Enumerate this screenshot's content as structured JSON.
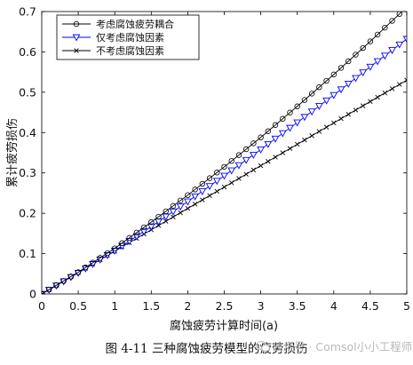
{
  "chart_data": {
    "type": "line",
    "title": "",
    "xlabel": "腐蚀疲劳计算时间(a)",
    "ylabel": "累计疲劳损伤",
    "xlim": [
      0,
      5
    ],
    "ylim": [
      0,
      0.7
    ],
    "xticks": [
      0,
      0.5,
      1,
      1.5,
      2,
      2.5,
      3,
      3.5,
      4,
      4.5,
      5
    ],
    "xtick_labels": [
      "0",
      "0.5",
      "1",
      "1.5",
      "2",
      "2.5",
      "3",
      "3.5",
      "4",
      "4.5",
      "5"
    ],
    "yticks": [
      0,
      0.1,
      0.2,
      0.3,
      0.4,
      0.5,
      0.6,
      0.7
    ],
    "ytick_labels": [
      "0",
      "0.1",
      "0.2",
      "0.3",
      "0.4",
      "0.5",
      "0.6",
      "0.7"
    ],
    "grid": false,
    "legend_position": "top-left",
    "x": [
      0,
      0.5,
      1,
      1.5,
      2,
      2.5,
      3,
      3.5,
      4,
      4.5,
      5
    ],
    "series": [
      {
        "name": "考虑腐蚀疲劳耦合",
        "color": "#000000",
        "marker": "circle",
        "values": [
          0,
          0.054,
          0.113,
          0.178,
          0.245,
          0.315,
          0.388,
          0.465,
          0.544,
          0.626,
          0.711
        ]
      },
      {
        "name": "仅考虑腐蚀因素",
        "color": "#0000ff",
        "marker": "triangle-down",
        "values": [
          0,
          0.052,
          0.107,
          0.167,
          0.229,
          0.293,
          0.358,
          0.425,
          0.493,
          0.563,
          0.632
        ]
      },
      {
        "name": "不考虑腐蚀因素",
        "color": "#000000",
        "marker": "x",
        "values": [
          0,
          0.053,
          0.106,
          0.159,
          0.212,
          0.265,
          0.318,
          0.371,
          0.424,
          0.477,
          0.53
        ]
      }
    ]
  },
  "caption": "图 4-11  三种腐蚀疲劳模型的疲劳损伤",
  "watermark": "公众号 · Comsol小小工程师"
}
